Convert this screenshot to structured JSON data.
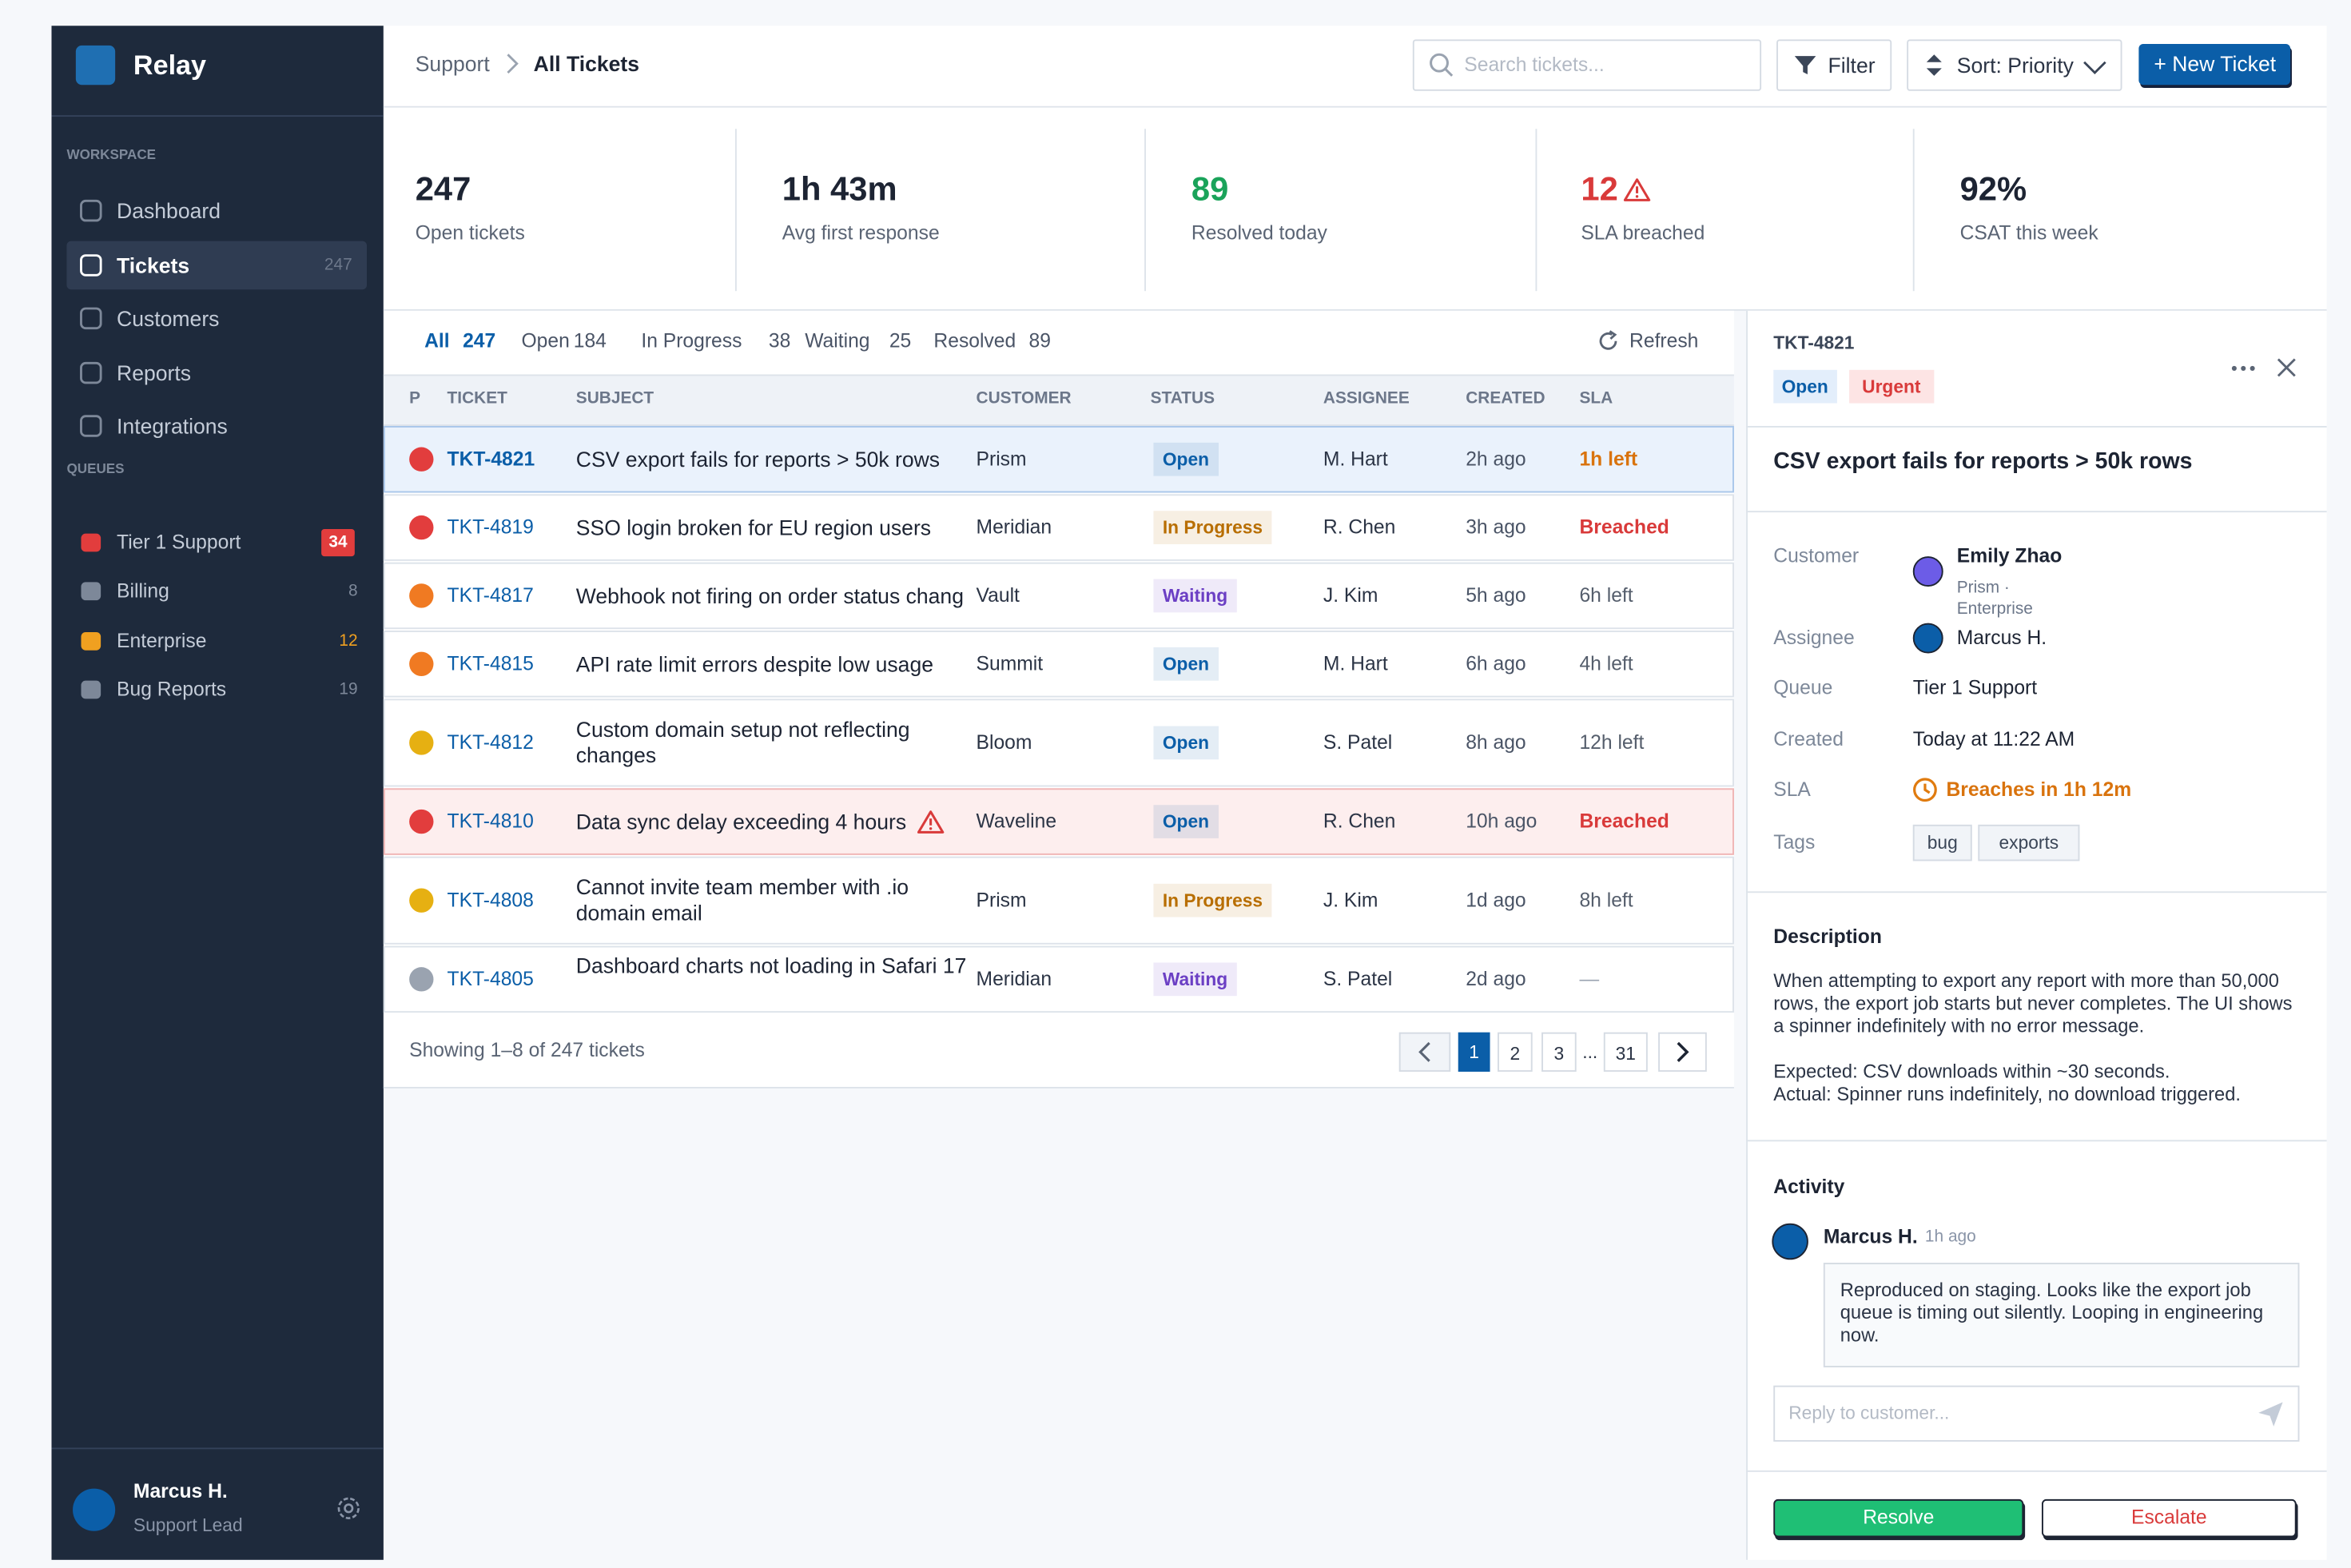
{
  "sidebar": {
    "brand": "Relay",
    "workspace_label": "WORKSPACE",
    "active_nav": 1,
    "nav": [
      {
        "label": "Dashboard"
      },
      {
        "label": "Tickets",
        "count": 247
      },
      {
        "label": "Customers"
      },
      {
        "label": "Reports"
      },
      {
        "label": "Integrations"
      }
    ],
    "queues_label": "QUEUES",
    "queues": [
      {
        "label": "Tier 1 Support",
        "count": 34,
        "icon_color": "#e23d3d",
        "count_color": "#ffffff",
        "count_bg": "#e23d3d"
      },
      {
        "label": "Billing",
        "count": 8,
        "icon_color": "#7d8899",
        "count_color": "#7d8899"
      },
      {
        "label": "Enterprise",
        "count": 12,
        "icon_color": "#f0a020",
        "count_color": "#f0a020"
      },
      {
        "label": "Bug Reports",
        "count": 19,
        "icon_color": "#7d8899",
        "count_color": "#7d8899"
      }
    ],
    "user": {
      "name": "Marcus H.",
      "role": "Support Lead"
    }
  },
  "header": {
    "breadcrumb": [
      "Support",
      "All Tickets"
    ],
    "search_placeholder": "Search tickets...",
    "filter": "Filter",
    "sort": "Sort: Priority",
    "new_ticket": "+ New Ticket"
  },
  "stats": [
    {
      "value": 247,
      "label": "Open tickets",
      "color": "#1d2433"
    },
    {
      "value": "1h 43m",
      "label": "Avg first response",
      "color": "#1d2433"
    },
    {
      "value": 89,
      "label": "Resolved today",
      "color": "#1aa35a"
    },
    {
      "value": 12,
      "label": "SLA breached",
      "color": "#d93a3a",
      "warning": true
    },
    {
      "value": "92%",
      "label": "CSAT this week",
      "color": "#1d2433"
    }
  ],
  "tabs": [
    {
      "label": "All",
      "count": 247
    },
    {
      "label": "Open",
      "count": 184
    },
    {
      "label": "In Progress",
      "count": 38
    },
    {
      "label": "Waiting",
      "count": 25
    },
    {
      "label": "Resolved",
      "count": 89
    }
  ],
  "active_tab": 0,
  "refresh": "Refresh",
  "table": {
    "columns": [
      "P",
      "TICKET",
      "SUBJECT",
      "CUSTOMER",
      "STATUS",
      "ASSIGNEE",
      "CREATED",
      "SLA"
    ],
    "rows": [
      {
        "priority_color": "#e23d3d",
        "id": "TKT-4821",
        "subject": "CSV export fails for reports > 50k rows",
        "customer": "Prism",
        "status": "Open",
        "status_color": "#0b5ea8",
        "assignee": "M. Hart",
        "created": "2h ago",
        "sla": "1h left",
        "sla_color": "#d9730d",
        "selected": true
      },
      {
        "priority_color": "#e23d3d",
        "id": "TKT-4819",
        "subject": "SSO login broken for EU region users",
        "customer": "Meridian",
        "status": "In Progress",
        "status_color": "#b86e00",
        "assignee": "R. Chen",
        "created": "3h ago",
        "sla": "Breached",
        "sla_color": "#d93a3a"
      },
      {
        "priority_color": "#f07a22",
        "id": "TKT-4817",
        "subject": "Webhook not firing on order status chang",
        "customer": "Vault",
        "status": "Waiting",
        "status_color": "#6b3fc4",
        "assignee": "J. Kim",
        "created": "5h ago",
        "sla": "6h left",
        "sla_color": "#555e6c"
      },
      {
        "priority_color": "#f07a22",
        "id": "TKT-4815",
        "subject": "API rate limit errors despite low usage",
        "customer": "Summit",
        "status": "Open",
        "status_color": "#0b5ea8",
        "assignee": "M. Hart",
        "created": "6h ago",
        "sla": "4h left",
        "sla_color": "#555e6c"
      },
      {
        "priority_color": "#e6b012",
        "id": "TKT-4812",
        "subject": "Custom domain setup not reflecting changes",
        "customer": "Bloom",
        "status": "Open",
        "status_color": "#0b5ea8",
        "assignee": "S. Patel",
        "created": "8h ago",
        "sla": "12h left",
        "sla_color": "#555e6c"
      },
      {
        "priority_color": "#e23d3d",
        "id": "TKT-4810",
        "subject": "Data sync delay exceeding 4 hours",
        "customer": "Waveline",
        "status": "Open",
        "status_color": "#0b5ea8",
        "assignee": "R. Chen",
        "created": "10h ago",
        "sla": "Breached",
        "sla_color": "#d93a3a",
        "warning": true
      },
      {
        "priority_color": "#e6b012",
        "id": "TKT-4808",
        "subject": "Cannot invite team member with .io domain email",
        "customer": "Prism",
        "status": "In Progress",
        "status_color": "#b86e00",
        "assignee": "J. Kim",
        "created": "1d ago",
        "sla": "8h left",
        "sla_color": "#555e6c"
      },
      {
        "priority_color": "#9aa3b0",
        "id": "TKT-4805",
        "subject": "Dashboard charts not loading in Safari 17",
        "customer": "Meridian",
        "status": "Waiting",
        "status_color": "#6b3fc4",
        "assignee": "S. Patel",
        "created": "2d ago",
        "sla": "—",
        "sla_color": "#9aa3b0"
      }
    ]
  },
  "pagination": {
    "showing": "Showing 1–8 of 247 tickets",
    "pages": [
      1,
      2,
      3,
      "...",
      31
    ],
    "current": 0
  },
  "detail": {
    "id": "TKT-4821",
    "badges": [
      {
        "label": "Open",
        "color": "#0b5ea8",
        "bg": "#e3eefb"
      },
      {
        "label": "Urgent",
        "color": "#d93a3a",
        "bg": "#fde4e4"
      }
    ],
    "title": "CSV export fails for reports > 50k rows",
    "fields": {
      "customer_label": "Customer",
      "customer_name": "Emily Zhao",
      "customer_org": "Prism ·",
      "customer_plan": "Enterprise",
      "assignee_label": "Assignee",
      "assignee": "Marcus H.",
      "queue_label": "Queue",
      "queue": "Tier 1 Support",
      "created_label": "Created",
      "created": "Today at 11:22 AM",
      "sla_label": "SLA",
      "sla": "Breaches in 1h 12m",
      "tags_label": "Tags",
      "tags": [
        "bug",
        "exports"
      ]
    },
    "description_title": "Description",
    "description": [
      "When attempting to export any report with more than 50,000 rows, the export job starts but never completes. The UI shows a spinner indefinitely with no error message.",
      "Expected: CSV downloads within ~30 seconds.\nActual: Spinner runs indefinitely, no download triggered."
    ],
    "activity_title": "Activity",
    "activity": [
      {
        "author": "Marcus H.",
        "time": "1h ago",
        "text": "Reproduced on staging. Looks like the export job queue is timing out silently. Looping in engineering now."
      }
    ],
    "reply_placeholder": "Reply to customer...",
    "resolve": "Resolve",
    "escalate": "Escalate"
  }
}
